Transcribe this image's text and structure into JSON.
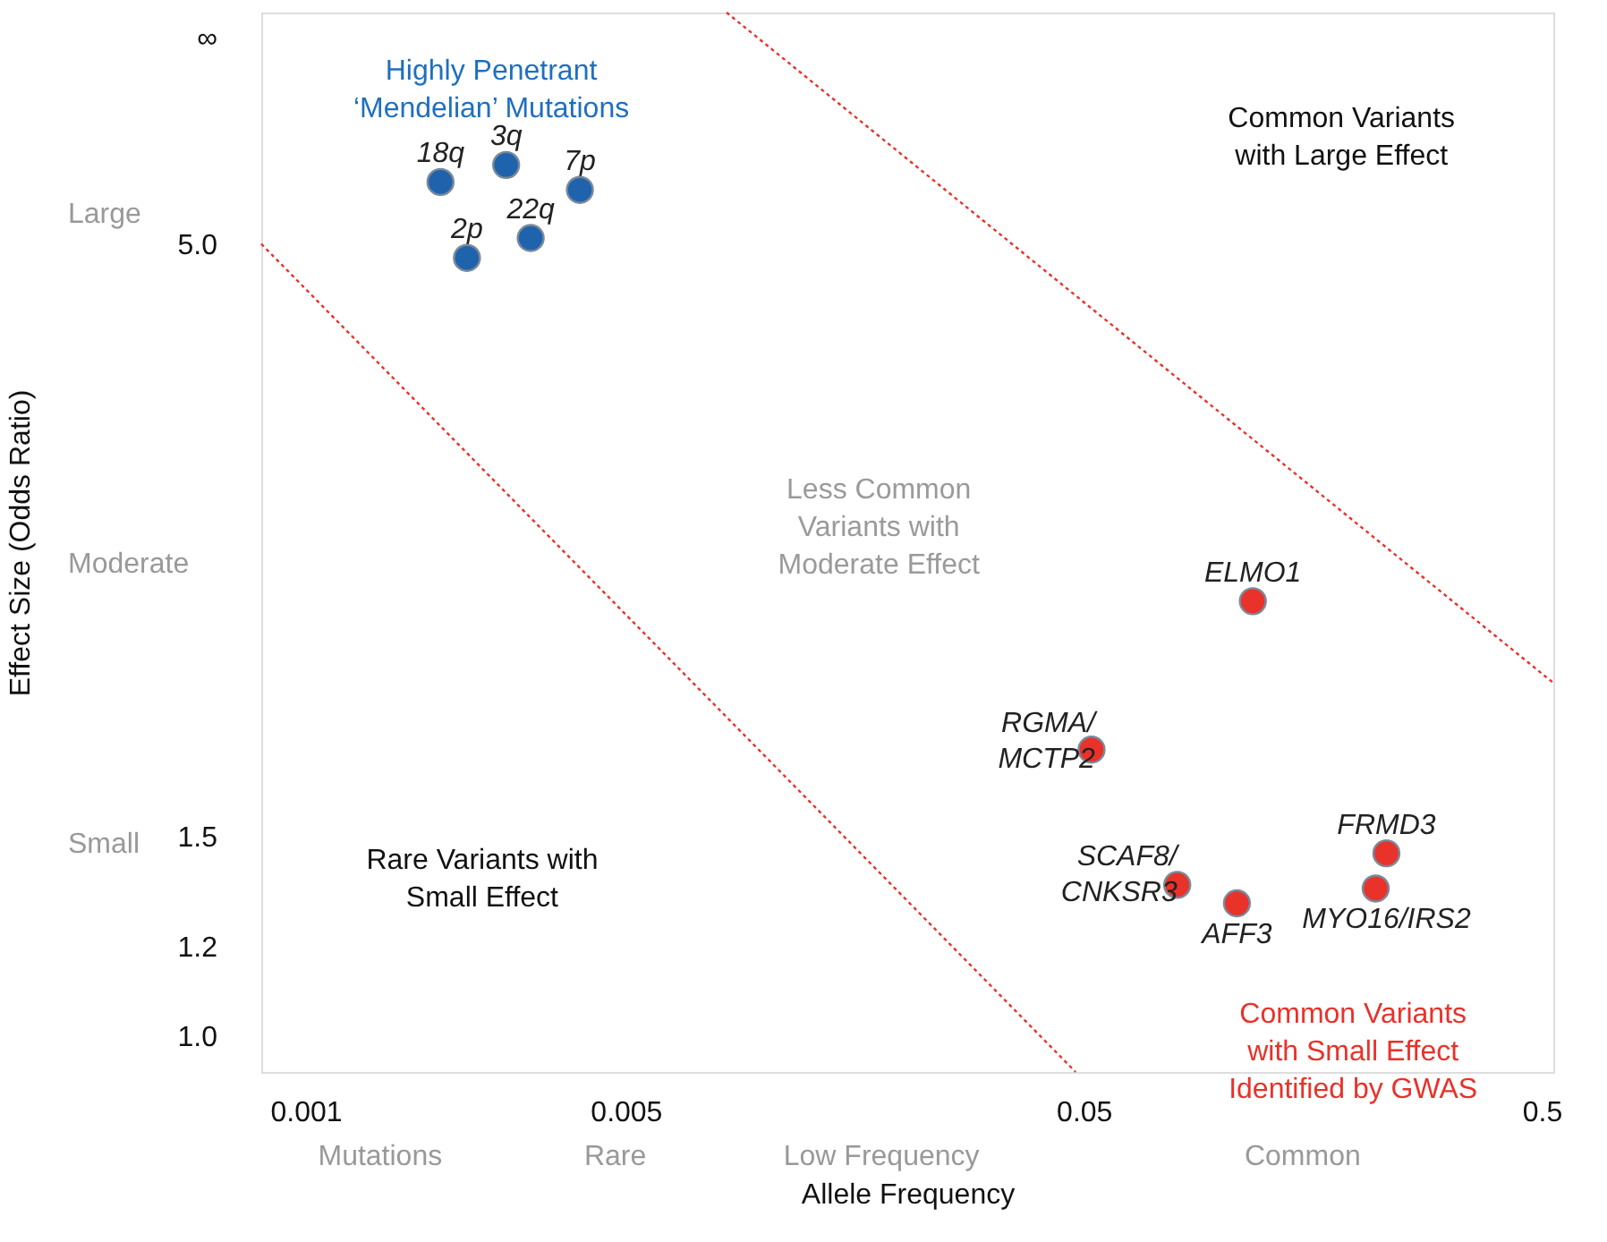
{
  "chart_data": {
    "type": "scatter",
    "xlabel": "Allele Frequency",
    "ylabel": "Effect Size (Odds Ratio)",
    "log": "xy",
    "xlim": [
      0.0008,
      0.53
    ],
    "xticks": [
      0.001,
      0.005,
      0.05,
      0.5
    ],
    "ylim": [
      0.93,
      8
    ],
    "yticks": [
      {
        "value": 1,
        "label": "1.0"
      },
      1.2,
      1.5,
      {
        "value": 5,
        "label": "5.0"
      },
      {
        "value": 7.6,
        "label": "∞"
      }
    ],
    "grid": false,
    "marker": "circle",
    "series": [
      {
        "type": "scatter",
        "color": "#1f63ad",
        "x": [
          0.00197,
          0.00274,
          0.00397,
          0.0031,
          0.00225
        ],
        "values": [
          5.67,
          5.87,
          5.58,
          5.06,
          4.86
        ]
      },
      {
        "type": "scatter",
        "color": "#e8322a",
        "x": [
          0.117,
          0.052,
          0.08,
          0.108,
          0.229,
          0.217
        ],
        "values": [
          2.42,
          1.79,
          1.36,
          1.31,
          1.45,
          1.35
        ]
      },
      {
        "type": "line",
        "color": "#e8322a",
        "line_style": "dotted",
        "marker": "none",
        "x": [
          0.0008,
          0.048
        ],
        "values": [
          5.0,
          0.93
        ]
      },
      {
        "type": "line",
        "color": "#e8322a",
        "line_style": "dotted",
        "marker": "none",
        "x": [
          0.0083,
          0.53
        ],
        "values": [
          8,
          2.05
        ]
      }
    ],
    "annotations": [
      {
        "text": "18q",
        "x": 0.00197,
        "y": 5.67
      },
      {
        "text": "3q",
        "x": 0.00274,
        "y": 5.87
      },
      {
        "text": "7p",
        "x": 0.00397,
        "y": 5.58
      },
      {
        "text": "22q",
        "x": 0.0031,
        "y": 5.06
      },
      {
        "text": "2p",
        "x": 0.00225,
        "y": 4.86
      },
      {
        "text": "ELMO1",
        "x": 0.117,
        "y": 2.42
      },
      {
        "text": "RGMA/\nMCTP2",
        "x": 0.052,
        "y": 1.79
      },
      {
        "text": "SCAF8/\nCNKSR3",
        "x": 0.08,
        "y": 1.36
      },
      {
        "text": "AFF3",
        "x": 0.108,
        "y": 1.31
      },
      {
        "text": "FRMD3",
        "x": 0.229,
        "y": 1.45
      },
      {
        "text": "MYO16/IRS2",
        "x": 0.217,
        "y": 1.35
      },
      "Highly Penetrant\n‘Mendelian’ Mutations",
      "Common Variants\nwith Large Effect",
      "Less Common\nVariants with\nModerate Effect",
      "Rare Variants with\nSmall Effect",
      "Common Variants\nwith Small Effect\nIdentified by GWAS",
      "Mutations",
      "Rare",
      "Low Frequency",
      "Common",
      "Large",
      "Moderate",
      "Small"
    ]
  }
}
